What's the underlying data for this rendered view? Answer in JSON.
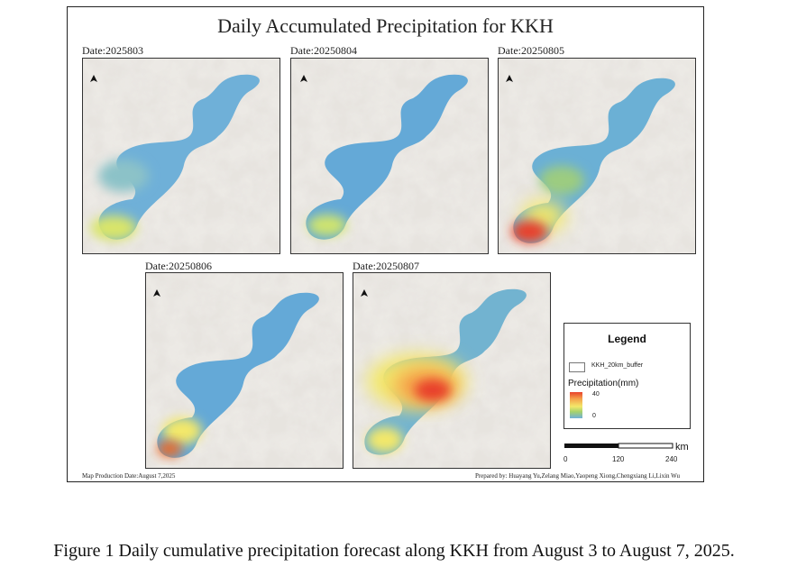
{
  "map": {
    "title": "Daily Accumulated Precipitation for KKH",
    "panels": [
      {
        "date_label": "Date:2025803"
      },
      {
        "date_label": "Date:20250804"
      },
      {
        "date_label": "Date:20250805"
      },
      {
        "date_label": "Date:20250806"
      },
      {
        "date_label": "Date:20250807"
      }
    ],
    "legend": {
      "title": "Legend",
      "buffer_label": "KKH_20km_buffer",
      "precip_label": "Precipitation(mm)",
      "max_label": "40",
      "min_label": "0",
      "colors": {
        "high": "#e8412c",
        "mid": "#f3e86a",
        "low": "#6fb0d8"
      }
    },
    "scale": {
      "unit": "km",
      "ticks": [
        "0",
        "120",
        "240"
      ]
    },
    "production_date": "Map Production Date:August 7,2025",
    "prepared_by": "Prepared by: Huayang Yu,Zelang Miao,Yaopeng Xiong,Chengxiang Li,Lixin Wu",
    "north_arrow": "north-arrow-icon"
  },
  "caption": "Figure 1 Daily cumulative precipitation forecast along KKH from August 3 to August 7, 2025."
}
